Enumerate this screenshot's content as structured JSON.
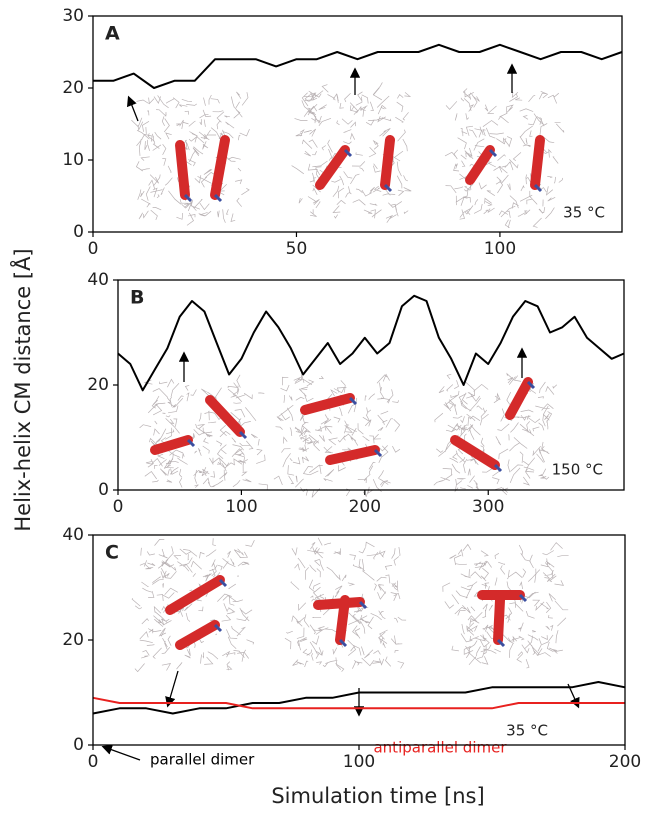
{
  "chart_data": [
    {
      "type": "line",
      "label": "A",
      "annotation": "35 °C",
      "x": [
        0,
        5,
        10,
        15,
        20,
        25,
        30,
        35,
        40,
        45,
        50,
        55,
        60,
        65,
        70,
        75,
        80,
        85,
        90,
        95,
        100,
        105,
        110,
        115,
        120,
        125,
        130
      ],
      "series": [
        {
          "color": "#000000",
          "values": [
            21,
            21,
            22,
            20,
            21,
            21,
            24,
            24,
            24,
            23,
            24,
            24,
            25,
            24,
            25,
            25,
            25,
            26,
            25,
            25,
            26,
            25,
            24,
            25,
            25,
            24,
            25
          ]
        }
      ],
      "xlim": [
        0,
        130
      ],
      "ylim": [
        0,
        30
      ],
      "xticks": [
        0,
        50,
        100
      ],
      "yticks": [
        0,
        10,
        20,
        30
      ]
    },
    {
      "type": "line",
      "label": "B",
      "annotation": "150 °C",
      "x": [
        0,
        10,
        20,
        30,
        40,
        50,
        60,
        70,
        80,
        90,
        100,
        110,
        120,
        130,
        140,
        150,
        160,
        170,
        180,
        190,
        200,
        210,
        220,
        230,
        240,
        250,
        260,
        270,
        280,
        290,
        300,
        310,
        320,
        330,
        340,
        350,
        360,
        370,
        380,
        390,
        400,
        410
      ],
      "series": [
        {
          "color": "#000000",
          "values": [
            26,
            24,
            19,
            23,
            27,
            33,
            36,
            34,
            28,
            22,
            25,
            30,
            34,
            31,
            27,
            22,
            25,
            28,
            24,
            26,
            29,
            26,
            28,
            35,
            37,
            36,
            29,
            25,
            20,
            26,
            24,
            28,
            33,
            36,
            35,
            30,
            31,
            33,
            29,
            27,
            25,
            26
          ]
        }
      ],
      "xlim": [
        0,
        410
      ],
      "ylim": [
        0,
        40
      ],
      "xticks": [
        0,
        100,
        200,
        300
      ],
      "yticks": [
        0,
        20,
        40
      ]
    },
    {
      "type": "line",
      "label": "C",
      "annotation": "35 °C",
      "x": [
        0,
        10,
        20,
        30,
        40,
        50,
        60,
        70,
        80,
        90,
        100,
        110,
        120,
        130,
        140,
        150,
        160,
        170,
        180,
        190,
        200
      ],
      "series": [
        {
          "name": "parallel dimer",
          "color": "#000000",
          "values": [
            6,
            7,
            7,
            6,
            7,
            7,
            8,
            8,
            9,
            9,
            10,
            10,
            10,
            10,
            10,
            11,
            11,
            11,
            11,
            12,
            11
          ]
        },
        {
          "name": "antiparallel dimer",
          "color": "#e8211f",
          "values": [
            9,
            8,
            8,
            8,
            8,
            8,
            7,
            7,
            7,
            7,
            7,
            7,
            7,
            7,
            7,
            7,
            8,
            8,
            8,
            8,
            8
          ]
        }
      ],
      "xlim": [
        0,
        200
      ],
      "ylim": [
        0,
        40
      ],
      "xticks": [
        0,
        100,
        200
      ],
      "yticks": [
        0,
        20,
        40
      ]
    }
  ],
  "ylabel": "Helix-helix CM distance [Å]",
  "xlabel": "Simulation time [ns]"
}
